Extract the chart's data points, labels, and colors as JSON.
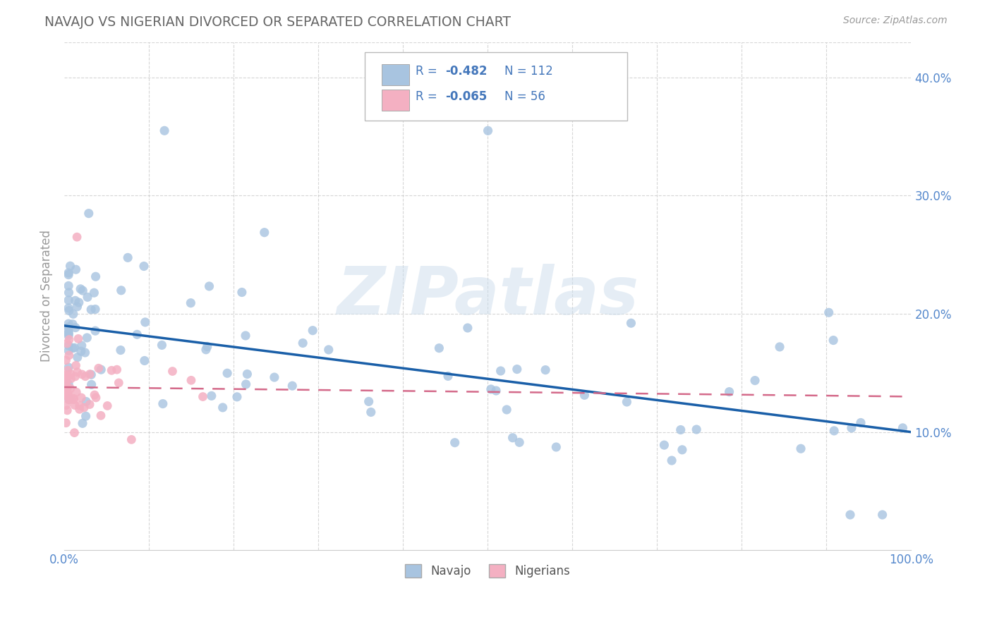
{
  "title": "NAVAJO VS NIGERIAN DIVORCED OR SEPARATED CORRELATION CHART",
  "source_text": "Source: ZipAtlas.com",
  "ylabel": "Divorced or Separated",
  "legend_label1": "Navajo",
  "legend_label2": "Nigerians",
  "R1": -0.482,
  "N1": 112,
  "R2": -0.065,
  "N2": 56,
  "color1": "#a8c4e0",
  "color2": "#f4b0c2",
  "line_color1": "#1a5fa8",
  "line_color2": "#d46a8a",
  "background_color": "#ffffff",
  "grid_color": "#cccccc",
  "title_color": "#666666",
  "tick_color": "#5588cc",
  "legend_text_color": "#4477bb",
  "watermark": "ZIPatlas",
  "xlim": [
    0.0,
    1.0
  ],
  "ylim": [
    0.0,
    0.43
  ],
  "yticks": [
    0.1,
    0.2,
    0.3,
    0.4
  ],
  "navajo_intercept": 0.19,
  "navajo_slope": -0.09,
  "nigerian_intercept": 0.138,
  "nigerian_slope": -0.008
}
